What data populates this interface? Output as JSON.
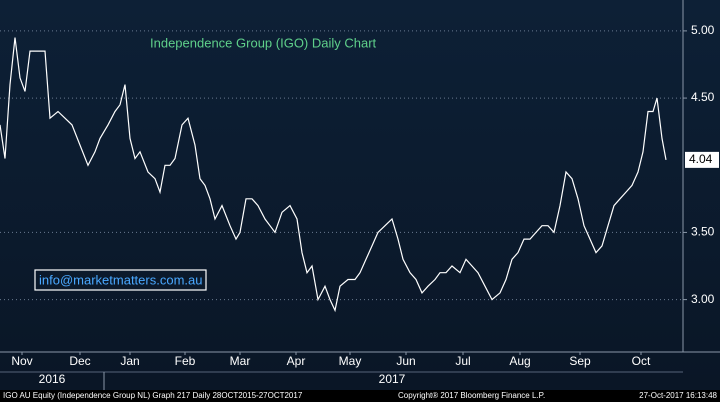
{
  "chart_data": {
    "type": "line",
    "title": "Independence Group (IGO) Daily Chart",
    "annotation": "info@marketmatters.com.au",
    "footer_left": "IGO AU Equity (Independence Group NL) Graph 217  Daily 28OCT2015-27OCT2017",
    "footer_center": "Copyright® 2017 Bloomberg Finance L.P.",
    "footer_right": "27-Oct-2017 16:13:48",
    "color": "#ffffff",
    "x": [
      0,
      5,
      10,
      15,
      20,
      25,
      30,
      38,
      45,
      50,
      58,
      65,
      72,
      80,
      88,
      95,
      100,
      108,
      115,
      120,
      125,
      130,
      135,
      140,
      148,
      155,
      160,
      165,
      170,
      175,
      182,
      188,
      195,
      200,
      205,
      210,
      215,
      222,
      230,
      236,
      240,
      246,
      252,
      258,
      265,
      270,
      275,
      282,
      290,
      297,
      302,
      307,
      312,
      318,
      325,
      330,
      335,
      340,
      348,
      355,
      360,
      366,
      372,
      378,
      385,
      392,
      398,
      403,
      410,
      416,
      422,
      428,
      435,
      440,
      446,
      452,
      460,
      466,
      472,
      478,
      485,
      492,
      500,
      506,
      512,
      518,
      524,
      530,
      536,
      542,
      548,
      554,
      560,
      566,
      572,
      578,
      584,
      590,
      596,
      602,
      608,
      614,
      620,
      626,
      632,
      638,
      643,
      648,
      653,
      657,
      662,
      666
    ],
    "values": [
      4.3,
      4.05,
      4.6,
      4.95,
      4.65,
      4.55,
      4.85,
      4.85,
      4.85,
      4.35,
      4.4,
      4.35,
      4.3,
      4.15,
      4.0,
      4.1,
      4.2,
      4.3,
      4.4,
      4.45,
      4.6,
      4.2,
      4.05,
      4.1,
      3.95,
      3.9,
      3.8,
      4.0,
      4.0,
      4.05,
      4.3,
      4.35,
      4.15,
      3.9,
      3.85,
      3.75,
      3.6,
      3.7,
      3.55,
      3.45,
      3.5,
      3.75,
      3.75,
      3.7,
      3.6,
      3.55,
      3.5,
      3.65,
      3.7,
      3.6,
      3.35,
      3.2,
      3.25,
      3.0,
      3.1,
      3.0,
      2.92,
      3.1,
      3.15,
      3.15,
      3.2,
      3.3,
      3.4,
      3.5,
      3.55,
      3.6,
      3.45,
      3.3,
      3.2,
      3.15,
      3.05,
      3.1,
      3.15,
      3.2,
      3.2,
      3.25,
      3.2,
      3.3,
      3.25,
      3.2,
      3.1,
      3.0,
      3.05,
      3.15,
      3.3,
      3.35,
      3.45,
      3.45,
      3.5,
      3.55,
      3.55,
      3.5,
      3.7,
      3.95,
      3.9,
      3.75,
      3.55,
      3.45,
      3.35,
      3.4,
      3.55,
      3.7,
      3.75,
      3.8,
      3.85,
      3.95,
      4.1,
      4.4,
      4.4,
      4.5,
      4.2,
      4.04
    ],
    "last_value": 4.04,
    "xlim": [
      0,
      683
    ],
    "ylim": [
      2.61,
      5.23
    ],
    "yticks": [
      {
        "value": 5,
        "label": "5.00"
      },
      {
        "value": 4.5,
        "label": "4.50"
      },
      {
        "value": 3.5,
        "label": "3.50"
      },
      {
        "value": 3,
        "label": "3.00"
      }
    ],
    "xticks": [
      {
        "value": 22,
        "label": "Nov"
      },
      {
        "value": 80,
        "label": "Dec"
      },
      {
        "value": 130,
        "label": "Jan"
      },
      {
        "value": 185,
        "label": "Feb"
      },
      {
        "value": 240,
        "label": "Mar"
      },
      {
        "value": 296,
        "label": "Apr"
      },
      {
        "value": 350,
        "label": "May"
      },
      {
        "value": 406,
        "label": "Jun"
      },
      {
        "value": 463,
        "label": "Jul"
      },
      {
        "value": 520,
        "label": "Aug"
      },
      {
        "value": 580,
        "label": "Sep"
      },
      {
        "value": 641,
        "label": "Oct"
      }
    ],
    "year_ticks": [
      {
        "value": 52,
        "label": "2016"
      },
      {
        "value": 392,
        "label": "2017"
      }
    ],
    "grid": true
  }
}
